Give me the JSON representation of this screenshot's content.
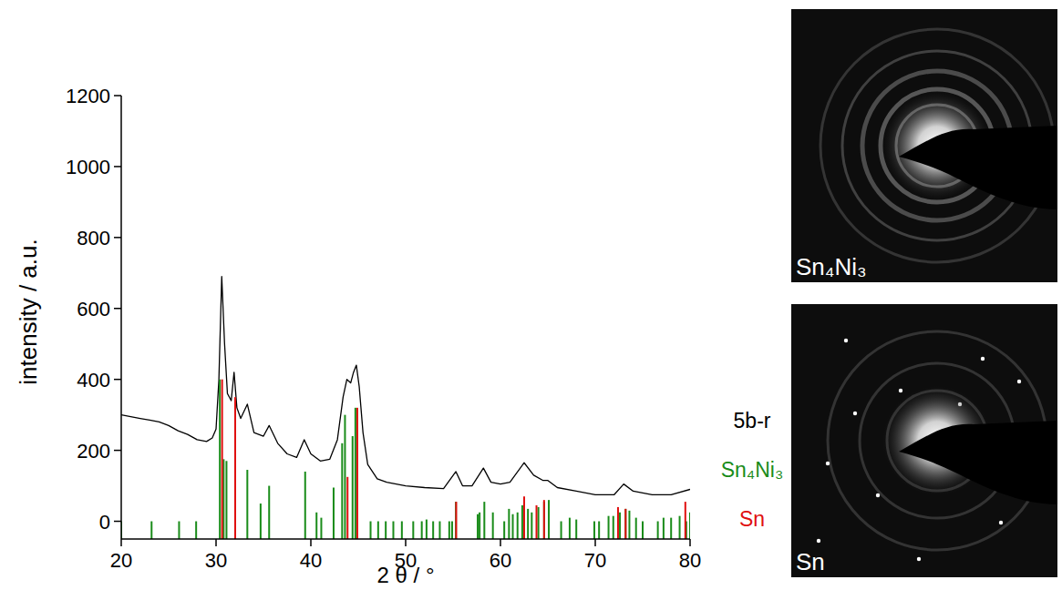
{
  "chart_data": {
    "type": "line",
    "x_label": "2 θ / °",
    "y_label": "intensity / a.u.",
    "xlim": [
      20,
      80
    ],
    "xticks": [
      20,
      30,
      40,
      50,
      60,
      70,
      80
    ],
    "ylim": [
      -50,
      1200
    ],
    "yticks": [
      0,
      200,
      400,
      600,
      800,
      1000,
      1200
    ],
    "grid": false,
    "legend": "right",
    "series": [
      {
        "name": "5b-r",
        "type": "line",
        "color": "#000000",
        "x": [
          20,
          21,
          22,
          23,
          24,
          25,
          26,
          27,
          28,
          29,
          29.6,
          30,
          30.3,
          30.6,
          30.9,
          31.2,
          31.6,
          31.9,
          32.2,
          32.6,
          33.3,
          34,
          35,
          35.6,
          36.5,
          37.5,
          38.5,
          39.3,
          40,
          41,
          42,
          42.8,
          43.4,
          43.8,
          44.2,
          44.5,
          44.8,
          45.1,
          45.5,
          46,
          47,
          48,
          50,
          52,
          54,
          55.3,
          56,
          57,
          58.2,
          59,
          60,
          61,
          62.5,
          63.5,
          64.5,
          65,
          66,
          68,
          70,
          72,
          73,
          74,
          76,
          78,
          80
        ],
        "values": [
          300,
          295,
          290,
          285,
          280,
          270,
          255,
          245,
          230,
          225,
          235,
          260,
          400,
          690,
          500,
          360,
          340,
          420,
          320,
          290,
          330,
          250,
          240,
          270,
          220,
          190,
          180,
          230,
          190,
          170,
          175,
          230,
          350,
          400,
          390,
          420,
          440,
          380,
          250,
          160,
          120,
          110,
          100,
          95,
          92,
          140,
          100,
          100,
          150,
          110,
          105,
          110,
          165,
          130,
          115,
          115,
          95,
          85,
          75,
          75,
          105,
          85,
          75,
          75,
          90
        ]
      },
      {
        "name": "Sn₄Ni₃",
        "type": "bar",
        "color": "#1a8c1a",
        "x": [
          20,
          23.2,
          26.1,
          27.9,
          30.4,
          30.8,
          31.1,
          33.3,
          34.7,
          35.6,
          39.4,
          40.6,
          41.1,
          42.4,
          43.3,
          43.6,
          44.4,
          44.7,
          46.3,
          47.1,
          47.9,
          48.7,
          49.6,
          50.8,
          51.7,
          52.2,
          52.9,
          53.6,
          54.6,
          54.9,
          55.3,
          57.6,
          57.8,
          58.3,
          59.2,
          60.4,
          60.9,
          61.3,
          61.8,
          62.3,
          62.9,
          63.3,
          64,
          64.6,
          65.1,
          66.4,
          67.3,
          68,
          69.9,
          70.4,
          71.4,
          71.9,
          72.6,
          73.2,
          73.6,
          74.3,
          75,
          76.6,
          77.2,
          78,
          78.9,
          79.6,
          80
        ],
        "values": [
          0,
          0,
          0,
          0,
          400,
          175,
          170,
          145,
          50,
          100,
          140,
          25,
          10,
          95,
          220,
          300,
          240,
          320,
          0,
          0,
          0,
          0,
          0,
          0,
          0,
          5,
          0,
          0,
          0,
          0,
          55,
          20,
          25,
          55,
          25,
          0,
          35,
          20,
          25,
          45,
          35,
          25,
          40,
          55,
          60,
          0,
          10,
          5,
          0,
          0,
          15,
          15,
          25,
          35,
          30,
          10,
          0,
          0,
          10,
          10,
          15,
          0,
          25
        ]
      },
      {
        "name": "Sn",
        "type": "bar",
        "color": "#e01010",
        "x": [
          30.64,
          32.02,
          43.87,
          44.9,
          55.33,
          62.5,
          63.8,
          64.6,
          72.4,
          73.2,
          79.5
        ],
        "values": [
          400,
          350,
          125,
          320,
          55,
          70,
          45,
          60,
          40,
          35,
          55
        ]
      }
    ]
  },
  "images": [
    {
      "label": "Sn₄Ni₃"
    },
    {
      "label": "Sn"
    }
  ]
}
